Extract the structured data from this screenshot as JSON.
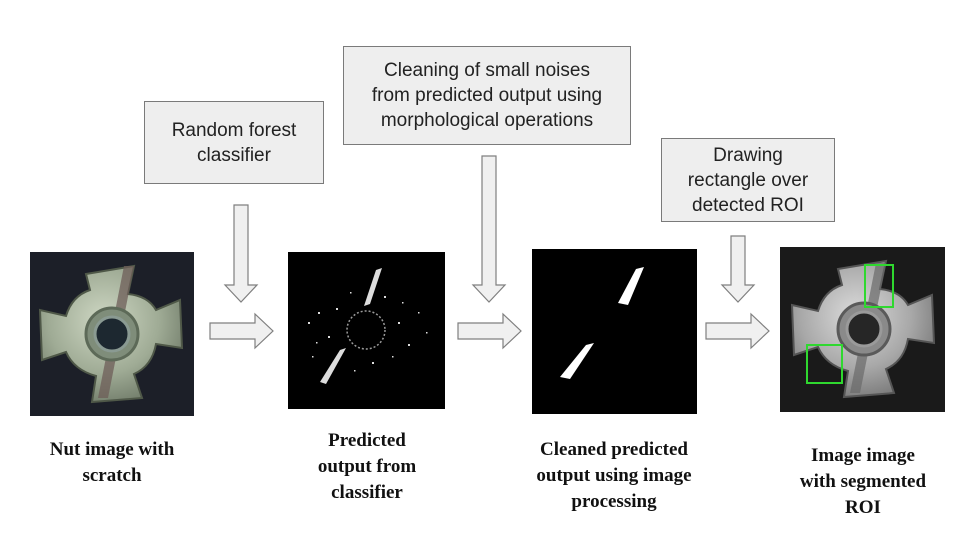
{
  "process_boxes": {
    "classifier": [
      "Random forest",
      "classifier"
    ],
    "cleaning": [
      "Cleaning of small noises",
      "from predicted output using",
      "morphological operations"
    ],
    "drawing": [
      "Drawing",
      "rectangle over",
      "detected ROI"
    ]
  },
  "captions": {
    "nut": [
      "Nut image with",
      "scratch"
    ],
    "predicted": [
      "Predicted",
      "output from",
      "classifier"
    ],
    "cleaned": [
      "Cleaned predicted",
      "output using image",
      "processing"
    ],
    "segmented": [
      "Image image",
      "with segmented",
      "ROI"
    ]
  },
  "colors": {
    "box_fill": "#eeeeee",
    "box_border": "#7a7a7a",
    "arrow_fill": "#f0f0f0",
    "arrow_stroke": "#7f7f7f",
    "roi_green": "#2fd82f"
  }
}
